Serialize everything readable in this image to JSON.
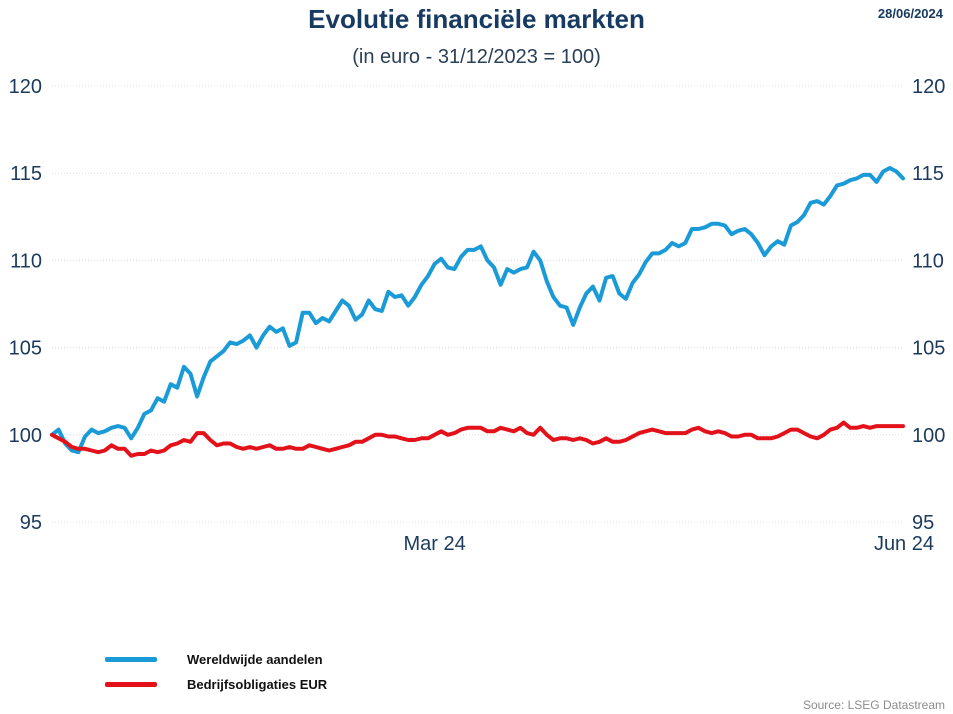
{
  "header": {
    "title": "Evolutie financiële markten",
    "subtitle": "(in euro - 31/12/2023 = 100)",
    "date": "28/06/2024"
  },
  "footer": {
    "source": "Source: LSEG Datastream"
  },
  "colors": {
    "stocks": "#1a9bd7",
    "bonds": "#e3121a",
    "text": "#1b3a5c",
    "grid": "#dcdcdc"
  },
  "chart_data": {
    "type": "line",
    "x_ticks": [
      {
        "x": 58,
        "label": "Mar 24"
      },
      {
        "x": 123,
        "label": "Jun 24"
      }
    ],
    "ylim": [
      95,
      120
    ],
    "y_ticks": [
      95,
      100,
      105,
      110,
      115,
      120
    ],
    "grid": true,
    "legend_position": "bottom-left",
    "series": [
      {
        "name": "Wereldwijde aandelen",
        "color": "#1a9bd7",
        "values": [
          100.0,
          100.3,
          99.5,
          99.1,
          99.0,
          99.9,
          100.3,
          100.1,
          100.2,
          100.4,
          100.5,
          100.4,
          99.8,
          100.4,
          101.2,
          101.4,
          102.1,
          101.9,
          102.9,
          102.7,
          103.9,
          103.5,
          102.2,
          103.3,
          104.2,
          104.5,
          104.8,
          105.3,
          105.2,
          105.4,
          105.7,
          105.0,
          105.7,
          106.2,
          105.9,
          106.1,
          105.1,
          105.3,
          107.0,
          107.0,
          106.4,
          106.7,
          106.5,
          107.1,
          107.7,
          107.4,
          106.6,
          106.9,
          107.7,
          107.2,
          107.1,
          108.2,
          107.9,
          108.0,
          107.4,
          107.9,
          108.6,
          109.1,
          109.8,
          110.1,
          109.6,
          109.5,
          110.2,
          110.6,
          110.6,
          110.8,
          110.0,
          109.6,
          108.6,
          109.5,
          109.3,
          109.5,
          109.6,
          110.5,
          110.0,
          108.8,
          107.9,
          107.4,
          107.3,
          106.3,
          107.3,
          108.1,
          108.5,
          107.7,
          109.0,
          109.1,
          108.1,
          107.8,
          108.7,
          109.2,
          109.9,
          110.4,
          110.4,
          110.6,
          111.0,
          110.8,
          111.0,
          111.8,
          111.8,
          111.9,
          112.1,
          112.1,
          112.0,
          111.5,
          111.7,
          111.8,
          111.5,
          111.0,
          110.3,
          110.8,
          111.1,
          110.9,
          112.0,
          112.2,
          112.6,
          113.3,
          113.4,
          113.2,
          113.7,
          114.3,
          114.4,
          114.6,
          114.7,
          114.9,
          114.9,
          114.5,
          115.1,
          115.3,
          115.1,
          114.7
        ]
      },
      {
        "name": "Bedrijfsobligaties EUR",
        "color": "#e3121a",
        "values": [
          100.0,
          99.8,
          99.6,
          99.3,
          99.2,
          99.2,
          99.1,
          99.0,
          99.1,
          99.4,
          99.2,
          99.2,
          98.8,
          98.9,
          98.9,
          99.1,
          99.0,
          99.1,
          99.4,
          99.5,
          99.7,
          99.6,
          100.1,
          100.1,
          99.7,
          99.4,
          99.5,
          99.5,
          99.3,
          99.2,
          99.3,
          99.2,
          99.3,
          99.4,
          99.2,
          99.2,
          99.3,
          99.2,
          99.2,
          99.4,
          99.3,
          99.2,
          99.1,
          99.2,
          99.3,
          99.4,
          99.6,
          99.6,
          99.8,
          100.0,
          100.0,
          99.9,
          99.9,
          99.8,
          99.7,
          99.7,
          99.8,
          99.8,
          100.0,
          100.2,
          100.0,
          100.1,
          100.3,
          100.4,
          100.4,
          100.4,
          100.2,
          100.2,
          100.4,
          100.3,
          100.2,
          100.4,
          100.1,
          100.0,
          100.4,
          100.0,
          99.7,
          99.8,
          99.8,
          99.7,
          99.8,
          99.7,
          99.5,
          99.6,
          99.8,
          99.6,
          99.6,
          99.7,
          99.9,
          100.1,
          100.2,
          100.3,
          100.2,
          100.1,
          100.1,
          100.1,
          100.1,
          100.3,
          100.4,
          100.2,
          100.1,
          100.2,
          100.1,
          99.9,
          99.9,
          100.0,
          100.0,
          99.8,
          99.8,
          99.8,
          99.9,
          100.1,
          100.3,
          100.3,
          100.1,
          99.9,
          99.8,
          100.0,
          100.3,
          100.4,
          100.7,
          100.4,
          100.4,
          100.5,
          100.4,
          100.5,
          100.5,
          100.5,
          100.5,
          100.5
        ]
      }
    ]
  }
}
